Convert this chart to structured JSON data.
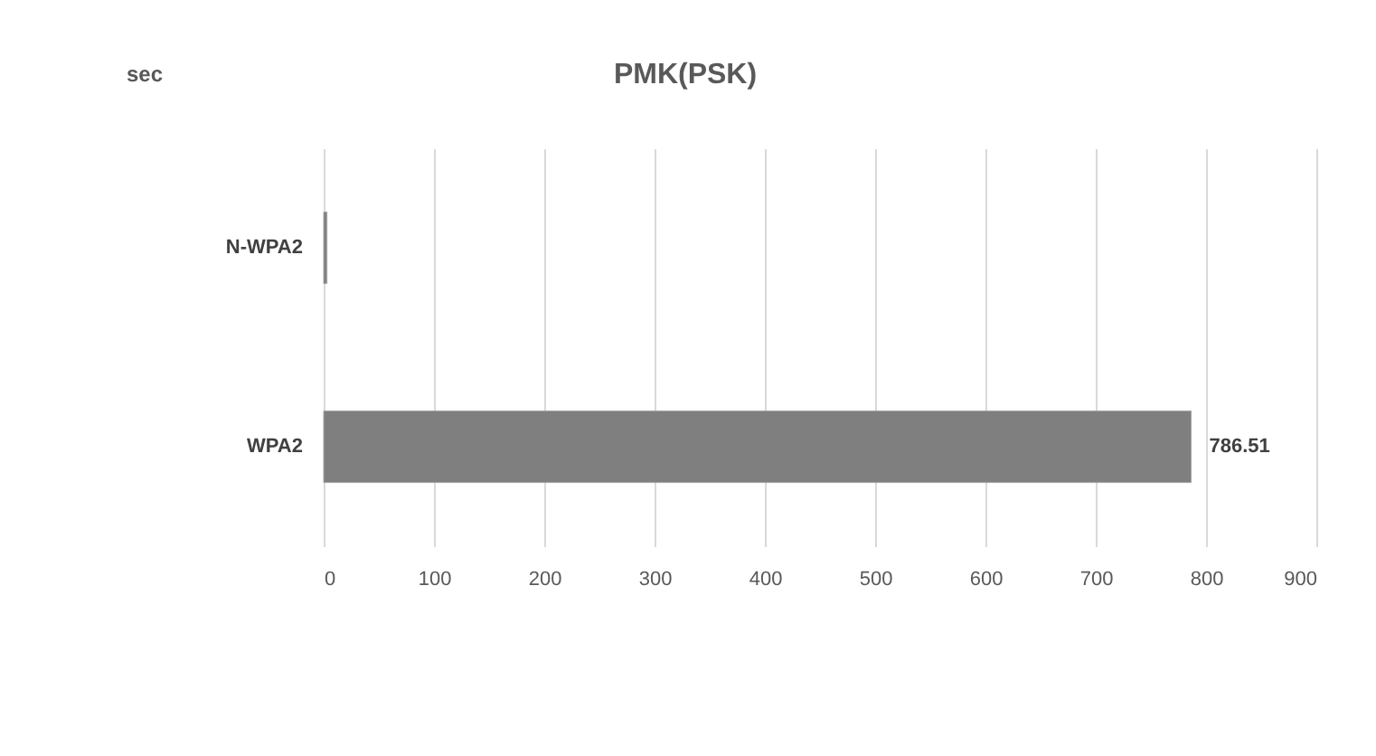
{
  "chart_data": {
    "type": "bar",
    "orientation": "horizontal",
    "title": "PMK(PSK)",
    "annotations": [
      "sec"
    ],
    "categories": [
      "N-WPA2",
      "WPA2"
    ],
    "values": [
      3,
      786.51
    ],
    "value_labels": [
      null,
      "786.51"
    ],
    "color": "#7f7f7f",
    "xlim": [
      0,
      900
    ],
    "xticks": [
      0,
      100,
      200,
      300,
      400,
      500,
      600,
      700,
      800,
      900
    ],
    "grid": "x"
  }
}
